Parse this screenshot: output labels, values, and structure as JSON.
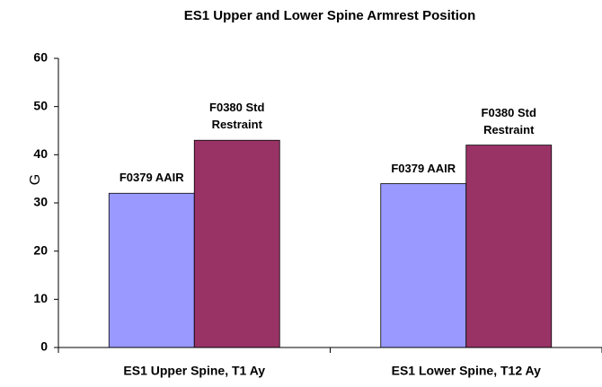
{
  "chart_data": {
    "type": "bar",
    "title": "ES1 Upper and Lower Spine Armrest Position",
    "y_label": "G",
    "categories": [
      "ES1 Upper Spine, T1 Ay",
      "ES1 Lower Spine, T12 Ay"
    ],
    "series": [
      {
        "name": "F0379 AAIR",
        "color": "#9999ff",
        "values": [
          32,
          34
        ]
      },
      {
        "name": "F0380 Std Restraint",
        "color": "#993366",
        "values": [
          43,
          42
        ]
      }
    ],
    "ylim": [
      0,
      60
    ],
    "yticks": [
      0,
      10,
      20,
      30,
      40,
      50,
      60
    ],
    "grid": false
  }
}
